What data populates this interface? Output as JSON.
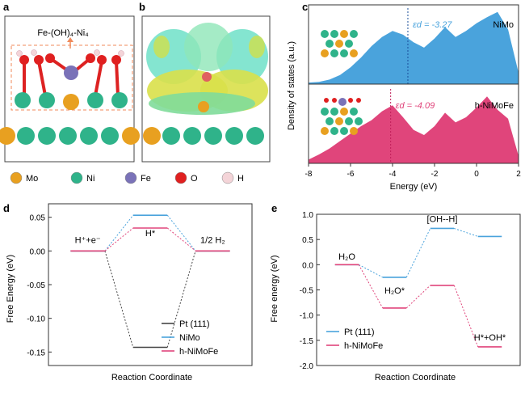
{
  "panels": {
    "a": "a",
    "b": "b",
    "c": "c",
    "d": "d",
    "e": "e"
  },
  "panel_a": {
    "label": "Fe-(OH)₄-Ni₄"
  },
  "legend": [
    {
      "label": "Mo",
      "color": "#e8a020"
    },
    {
      "label": "Ni",
      "color": "#2fb38a"
    },
    {
      "label": "Fe",
      "color": "#7a72b8"
    },
    {
      "label": "O",
      "color": "#e02020"
    },
    {
      "label": "H",
      "color": "#f4d4d8"
    }
  ],
  "chart_data": [
    {
      "type": "area",
      "panel": "c",
      "xlabel": "Energy (eV)",
      "ylabel": "Density of states (a.u.)",
      "xlim": [
        -8,
        2
      ],
      "xticks": [
        -8,
        -6,
        -4,
        -2,
        0,
        2
      ],
      "series": [
        {
          "name": "NiMo",
          "color": "#4aa3dc",
          "d_band_center_label": "εd = -3.27",
          "d_band_center": -3.27,
          "x": [
            -8,
            -7.5,
            -7,
            -6.5,
            -6,
            -5.5,
            -5,
            -4.5,
            -4,
            -3.5,
            -3,
            -2.5,
            -2,
            -1.5,
            -1,
            -0.5,
            0,
            0.5,
            1,
            1.5,
            2
          ],
          "y": [
            0.02,
            0.03,
            0.06,
            0.12,
            0.22,
            0.35,
            0.5,
            0.62,
            0.7,
            0.65,
            0.55,
            0.48,
            0.6,
            0.75,
            0.62,
            0.7,
            0.8,
            0.88,
            0.95,
            0.72,
            0.15
          ]
        },
        {
          "name": "h-NiMoFe",
          "color": "#e0457b",
          "d_band_center_label": "εd = -4.09",
          "d_band_center": -4.09,
          "x": [
            -8,
            -7.5,
            -7,
            -6.5,
            -6,
            -5.5,
            -5,
            -4.5,
            -4,
            -3.5,
            -3,
            -2.5,
            -2,
            -1.5,
            -1,
            -0.5,
            0,
            0.5,
            1,
            1.5,
            2
          ],
          "y": [
            0.05,
            0.12,
            0.2,
            0.3,
            0.4,
            0.5,
            0.58,
            0.7,
            0.78,
            0.62,
            0.45,
            0.38,
            0.5,
            0.68,
            0.55,
            0.62,
            0.75,
            0.9,
            0.72,
            0.6,
            0.1
          ]
        }
      ]
    },
    {
      "type": "line",
      "panel": "d",
      "xlabel": "Reaction Coordinate",
      "ylabel": "Free Energy (eV)",
      "ylim": [
        -0.17,
        0.07
      ],
      "yticks": [
        0.05,
        0.0,
        -0.05,
        -0.1,
        -0.15
      ],
      "ytick_labels": [
        "0.05",
        "0.00",
        "-0.05",
        "-0.10",
        "-0.15"
      ],
      "states": [
        "H⁺+e⁻",
        "H*",
        "1/2 H₂"
      ],
      "series": [
        {
          "name": "Pt (111)",
          "color": "#444444",
          "values": [
            0.0,
            -0.143,
            0.0
          ]
        },
        {
          "name": "NiMo",
          "color": "#4aa3dc",
          "values": [
            0.0,
            0.053,
            0.0
          ]
        },
        {
          "name": "h-NiMoFe",
          "color": "#e0457b",
          "values": [
            0.0,
            0.034,
            0.0
          ]
        }
      ]
    },
    {
      "type": "line",
      "panel": "e",
      "xlabel": "Reaction Coordinate",
      "ylabel": "Free energy (eV)",
      "ylim": [
        -2.0,
        1.0
      ],
      "yticks": [
        1.0,
        0.5,
        0.0,
        -0.5,
        -1.0,
        -1.5,
        -2.0
      ],
      "ytick_labels": [
        "1.0",
        "0.5",
        "0.0",
        "-0.5",
        "-1.0",
        "-1.5",
        "-2.0"
      ],
      "states": [
        "H₂O",
        "H₂O*",
        "[OH--H]",
        "H*+OH*"
      ],
      "series": [
        {
          "name": "Pt (111)",
          "color": "#4aa3dc",
          "values": [
            0.0,
            -0.25,
            0.72,
            0.56
          ]
        },
        {
          "name": "h-NiMoFe",
          "color": "#e0457b",
          "values": [
            0.0,
            -0.86,
            -0.41,
            -1.63
          ]
        }
      ]
    }
  ]
}
